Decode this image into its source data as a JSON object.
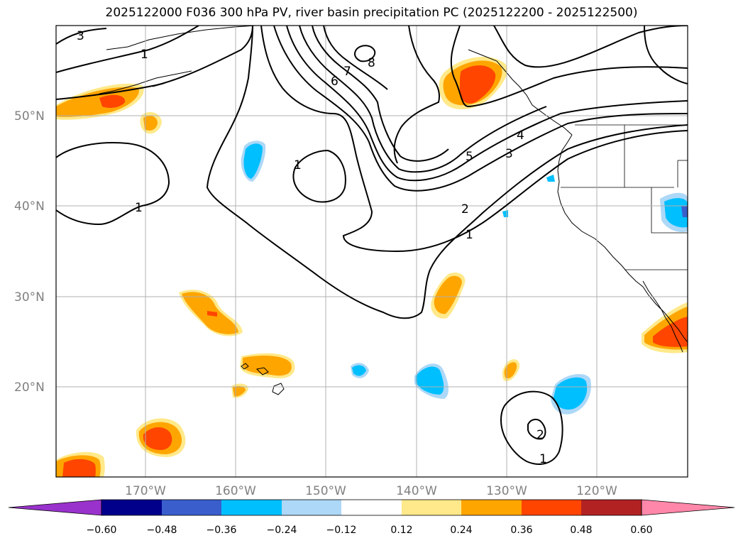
{
  "title": "2025122000 F036 300 hPa PV, river basin precipitation PC (2025122200 - 2025122500)",
  "latitude_labels": [
    "50°N",
    "40°N",
    "30°N",
    "20°N"
  ],
  "longitude_labels": [
    "170°W",
    "160°W",
    "150°W",
    "140°W",
    "130°W",
    "120°W"
  ],
  "colorbar": {
    "ticks": [
      "−0.60",
      "−0.48",
      "−0.36",
      "−0.24",
      "−0.12",
      "0.12",
      "0.24",
      "0.36",
      "0.48",
      "0.60"
    ],
    "colors": [
      "#9932cc",
      "#00008b",
      "#3a5fcd",
      "#00bfff",
      "#add8f7",
      "#ffffff",
      "#ffe98a",
      "#ffa500",
      "#ff4500",
      "#b22222",
      "#ff87a9"
    ]
  },
  "contour_labels": {
    "c3_topleft": "3",
    "c1_topleft": "1",
    "c1_west": "1",
    "c1_center": "1",
    "c8": "8",
    "c7": "7",
    "c6": "6",
    "c5": "5",
    "c4": "4",
    "c3": "3",
    "c2": "2",
    "c1_east": "1",
    "c2_south": "2",
    "c1_south": "1"
  }
}
